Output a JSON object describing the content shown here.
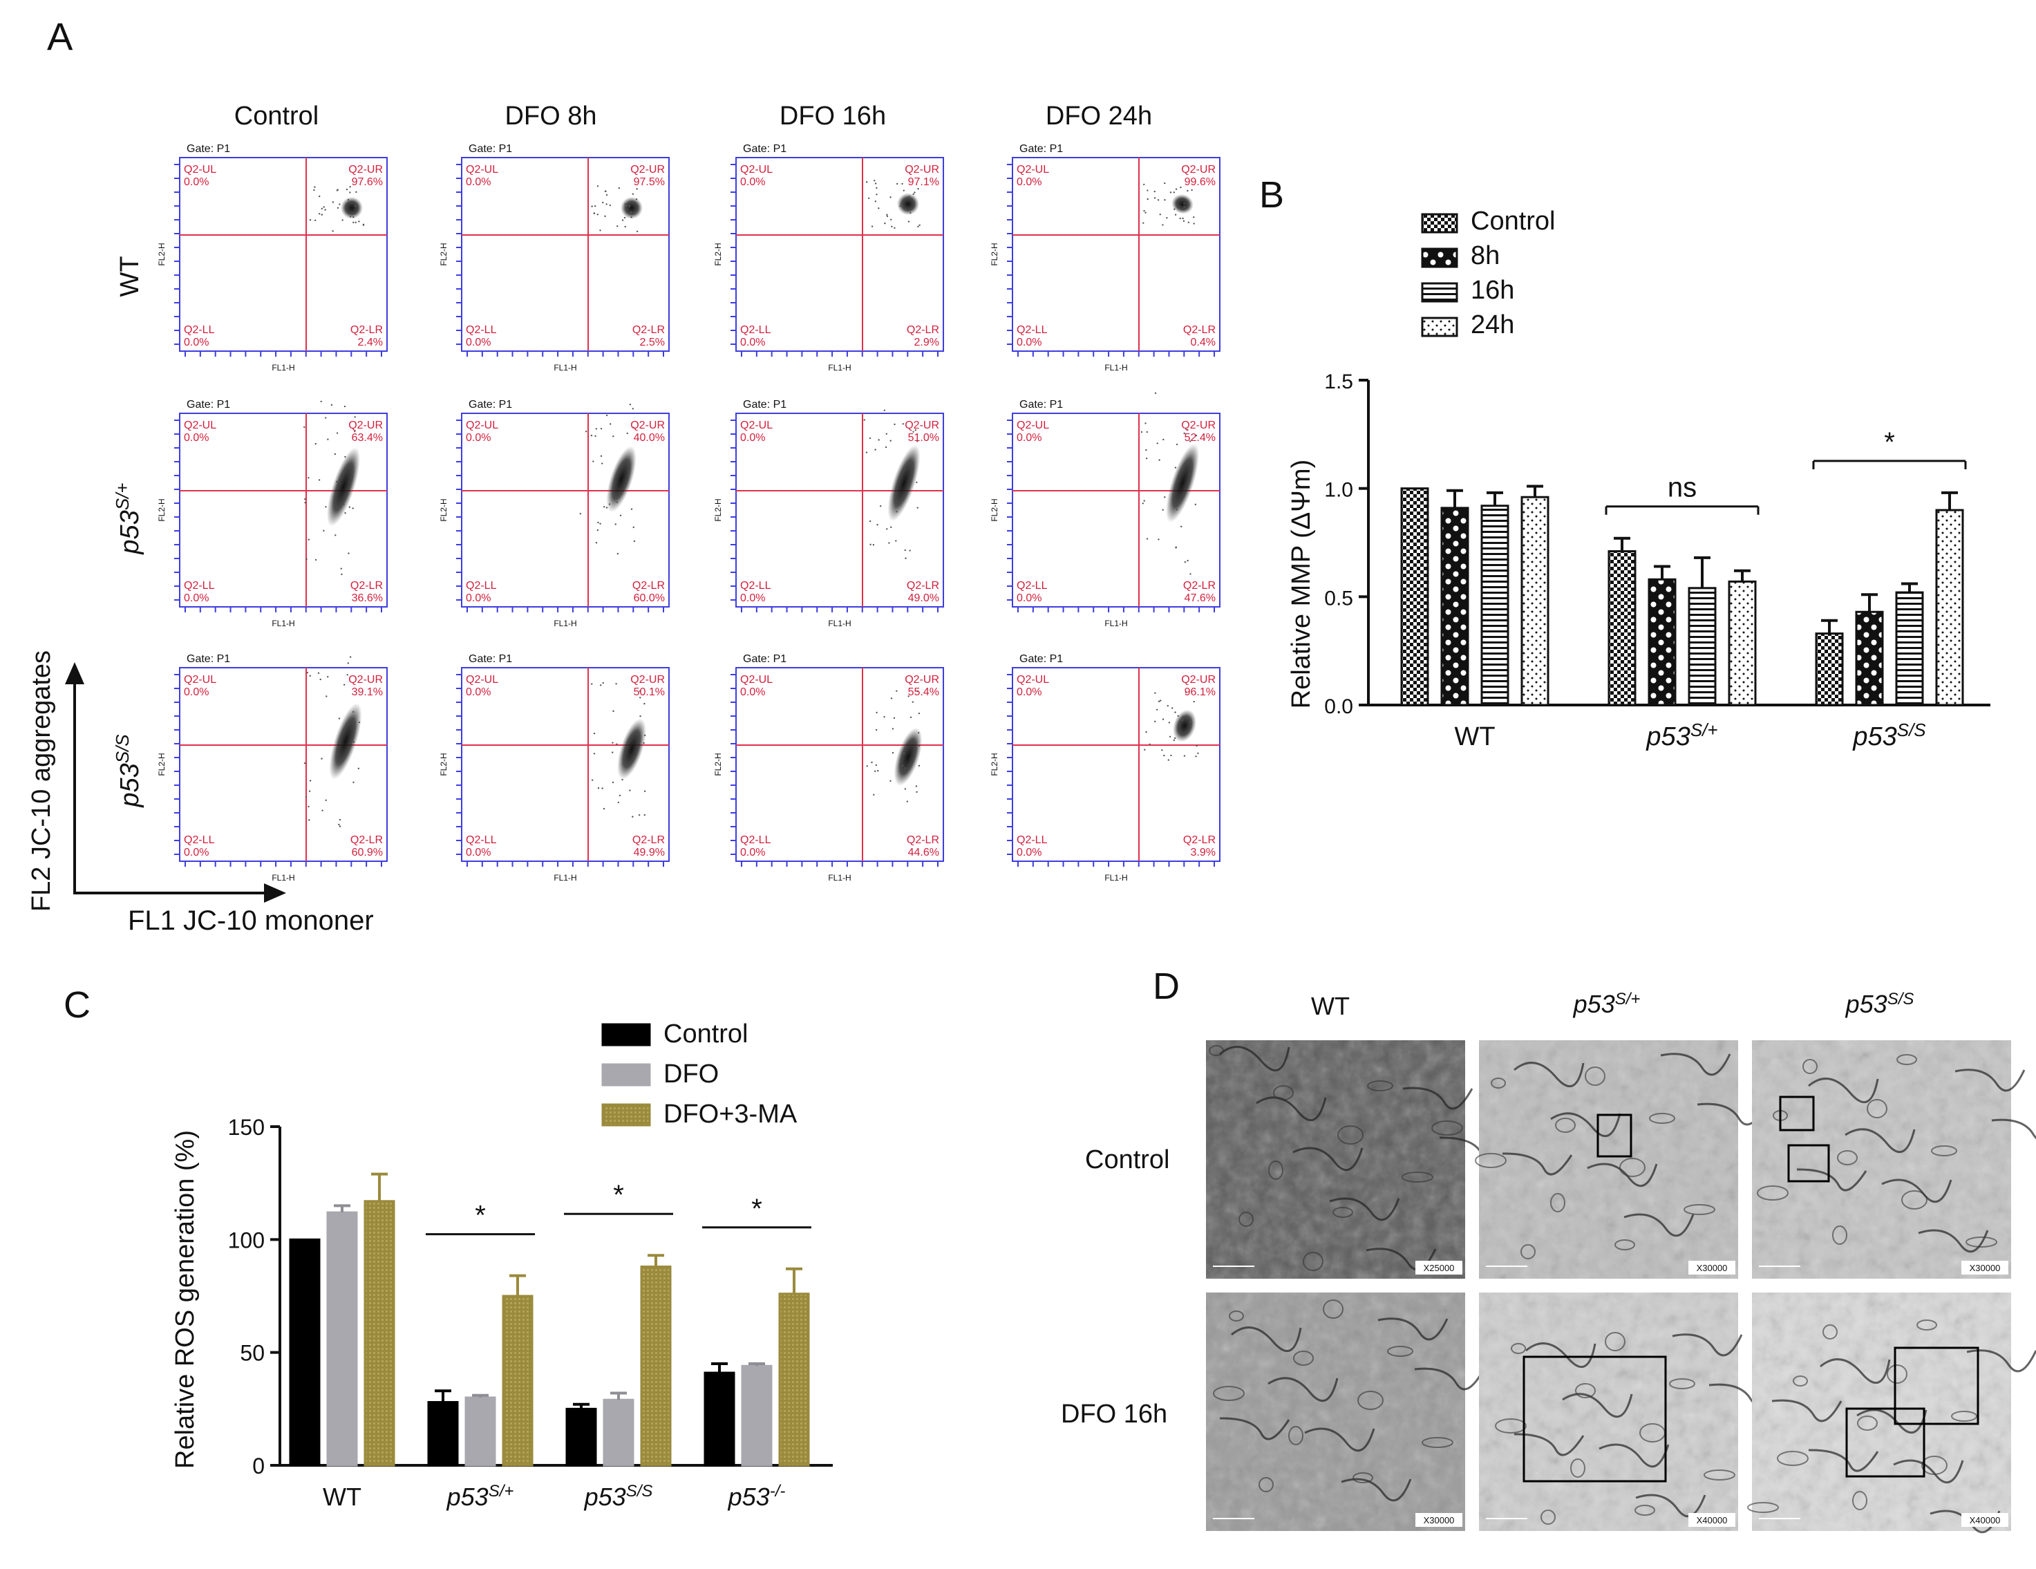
{
  "panel_labels": {
    "a": "A",
    "b": "B",
    "c": "C",
    "d": "D"
  },
  "panel_a": {
    "col_headers": [
      "Control",
      "DFO 8h",
      "DFO 16h",
      "DFO 24h"
    ],
    "row_labels": [
      {
        "base": "WT",
        "sup": ""
      },
      {
        "base": "p53",
        "sup": "S/+"
      },
      {
        "base": "p53",
        "sup": "S/S"
      }
    ],
    "y_axis_title": "FL2 JC-10 aggregates",
    "x_axis_title": "FL1 JC-10 mononer",
    "gate_text": "Gate: P1",
    "plot_x_label": "FL1-H",
    "plot_y_label": "FL2-H",
    "quadrant_names": {
      "ul": "Q2-UL",
      "ur": "Q2-UR",
      "ll": "Q2-LL",
      "lr": "Q2-LR"
    },
    "percentages": [
      [
        {
          "ul": "0.0%",
          "ur": "97.6%",
          "ll": "0.0%",
          "lr": "2.4%"
        },
        {
          "ul": "0.0%",
          "ur": "97.5%",
          "ll": "0.0%",
          "lr": "2.5%"
        },
        {
          "ul": "0.0%",
          "ur": "97.1%",
          "ll": "0.0%",
          "lr": "2.9%"
        },
        {
          "ul": "0.0%",
          "ur": "99.6%",
          "ll": "0.0%",
          "lr": "0.4%"
        }
      ],
      [
        {
          "ul": "0.0%",
          "ur": "63.4%",
          "ll": "0.0%",
          "lr": "36.6%"
        },
        {
          "ul": "0.0%",
          "ur": "40.0%",
          "ll": "0.0%",
          "lr": "60.0%"
        },
        {
          "ul": "0.0%",
          "ur": "51.0%",
          "ll": "0.0%",
          "lr": "49.0%"
        },
        {
          "ul": "0.0%",
          "ur": "52.4%",
          "ll": "0.0%",
          "lr": "47.6%"
        }
      ],
      [
        {
          "ul": "0.0%",
          "ur": "39.1%",
          "ll": "0.0%",
          "lr": "60.9%"
        },
        {
          "ul": "0.0%",
          "ur": "50.1%",
          "ll": "0.0%",
          "lr": "49.9%"
        },
        {
          "ul": "0.0%",
          "ur": "55.4%",
          "ll": "0.0%",
          "lr": "44.6%"
        },
        {
          "ul": "0.0%",
          "ur": "96.1%",
          "ll": "0.0%",
          "lr": "3.9%"
        }
      ]
    ]
  },
  "panel_d": {
    "col_headers": [
      {
        "base": "WT",
        "sup": ""
      },
      {
        "base": "p53",
        "sup": "S/+"
      },
      {
        "base": "p53",
        "sup": "S/S"
      }
    ],
    "row_labels": [
      "Control",
      "DFO 16h"
    ],
    "magnifications": [
      [
        "X25000",
        "X30000",
        "X30000"
      ],
      [
        "X30000",
        "X40000",
        "X40000"
      ]
    ]
  },
  "chart_data": [
    {
      "id": "B",
      "type": "bar",
      "ylabel": "Relative MMP (ΔΨm)",
      "ylim": [
        0,
        1.5
      ],
      "yticks": [
        "0.0",
        "0.5",
        "1.0",
        "1.5"
      ],
      "groups": [
        {
          "base": "WT",
          "sup": ""
        },
        {
          "base": "p53",
          "sup": "S/+"
        },
        {
          "base": "p53",
          "sup": "S/S"
        }
      ],
      "legend": [
        "Control",
        "8h",
        "16h",
        "24h"
      ],
      "series": [
        {
          "name": "Control",
          "values": [
            1.0,
            0.71,
            0.33
          ],
          "errors": [
            0.0,
            0.06,
            0.06
          ]
        },
        {
          "name": "8h",
          "values": [
            0.91,
            0.58,
            0.43
          ],
          "errors": [
            0.08,
            0.06,
            0.08
          ]
        },
        {
          "name": "16h",
          "values": [
            0.92,
            0.54,
            0.52
          ],
          "errors": [
            0.06,
            0.14,
            0.04
          ]
        },
        {
          "name": "24h",
          "values": [
            0.96,
            0.57,
            0.9
          ],
          "errors": [
            0.05,
            0.05,
            0.08
          ]
        }
      ],
      "annotations": [
        {
          "group_index": 1,
          "text": "ns"
        },
        {
          "group_index": 2,
          "text": "*"
        }
      ]
    },
    {
      "id": "C",
      "type": "bar",
      "ylabel": "Relative ROS generation (%)",
      "ylim": [
        0,
        150
      ],
      "yticks": [
        "0",
        "50",
        "100",
        "150"
      ],
      "groups": [
        {
          "base": "WT",
          "sup": ""
        },
        {
          "base": "p53",
          "sup": "S/+"
        },
        {
          "base": "p53",
          "sup": "S/S"
        },
        {
          "base": "p53",
          "sup": "-/-"
        }
      ],
      "legend": [
        "Control",
        "DFO",
        "DFO+3-MA"
      ],
      "colors": [
        "#000000",
        "#a8a8ae",
        "#9a8a3c"
      ],
      "series": [
        {
          "name": "Control",
          "values": [
            100,
            28,
            25,
            41
          ],
          "errors": [
            0,
            5,
            2,
            4
          ]
        },
        {
          "name": "DFO",
          "values": [
            112,
            30,
            29,
            44
          ],
          "errors": [
            3,
            1,
            3,
            1
          ]
        },
        {
          "name": "DFO+3-MA",
          "values": [
            117,
            75,
            88,
            76
          ],
          "errors": [
            12,
            9,
            5,
            11
          ]
        }
      ],
      "annotations": [
        {
          "group_index": 1,
          "text": "*"
        },
        {
          "group_index": 2,
          "text": "*"
        },
        {
          "group_index": 3,
          "text": "*"
        }
      ]
    }
  ]
}
